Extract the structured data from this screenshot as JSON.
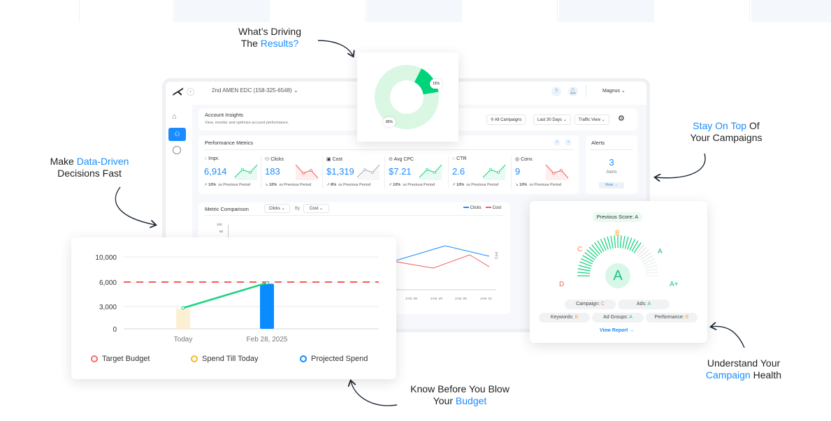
{
  "callouts": {
    "driving": {
      "line1": "What’s Driving",
      "line2_pre": "The ",
      "line2_hl": "Results?"
    },
    "data_driven": {
      "line1_pre": "Make ",
      "line1_hl": "Data-Driven",
      "line2": "Decisions Fast"
    },
    "stay_on_top": {
      "line1_hl": "Stay On Top",
      "line1_post": " Of",
      "line2": "Your Campaigns"
    },
    "health": {
      "line1": "Understand Your",
      "line2_hl": "Campaign",
      "line2_post": " Health"
    },
    "budget": {
      "line1": "Know Before You Blow",
      "line2_pre": "Your ",
      "line2_hl": "Budget"
    }
  },
  "colors": {
    "accent": "#1a8cff",
    "green": "#19d37f",
    "red": "#f25c5c",
    "orange": "#f5a623",
    "light_green": "#d9f7e8"
  },
  "header": {
    "account": "2nd AMEN EDC (158-325-6548)",
    "user": "Magnus"
  },
  "sidebar": {
    "items": [
      {
        "icon": "home-icon"
      },
      {
        "icon": "users-icon",
        "active": true
      },
      {
        "icon": "gauge-icon"
      }
    ]
  },
  "insights": {
    "title": "Account Insights",
    "subtitle": "View, monitor and optimize account performance.",
    "campaigns_filter": "All Campaigns",
    "date_filter": "Last 30 Days",
    "view_filter": "Traffic View"
  },
  "donut": {
    "segments": [
      {
        "label": "15%",
        "value": 15,
        "color": "#00d47a"
      },
      {
        "label": "85%",
        "value": 85,
        "color": "#d9f7e3"
      }
    ]
  },
  "performance": {
    "title": "Performance Metrics",
    "metrics": [
      {
        "label": "Impr.",
        "value": "6,914",
        "change": "10%",
        "compare": "vs Previous Period",
        "trend": "up",
        "color": "#19d37f"
      },
      {
        "label": "Clicks",
        "value": "183",
        "change": "10%",
        "compare": "vs Previous Period",
        "trend": "down",
        "color": "#f25c5c"
      },
      {
        "label": "Cost",
        "value": "$1,319",
        "change": "8%",
        "compare": "vs Previous Period",
        "trend": "up",
        "color": "#a9adb8"
      },
      {
        "label": "Avg CPC",
        "value": "$7.21",
        "change": "10%",
        "compare": "vs Previous Period",
        "trend": "up",
        "color": "#19d37f"
      },
      {
        "label": "CTR",
        "value": "2.6",
        "change": "10%",
        "compare": "vs Previous Period",
        "trend": "up",
        "color": "#19d37f"
      },
      {
        "label": "Conv.",
        "value": "9",
        "change": "10%",
        "compare": "vs Previous Period",
        "trend": "down",
        "color": "#f25c5c"
      }
    ]
  },
  "alerts": {
    "title": "Alerts",
    "count": "3",
    "label": "Alerts",
    "view": "View →"
  },
  "comparison": {
    "title": "Metric Comparison",
    "metric_a": "Clicks",
    "by": "By",
    "metric_b": "Cost",
    "legend": [
      "Clicks",
      "Cost"
    ],
    "y_ticks": [
      "100",
      "90"
    ],
    "right_axis_label": "Cost",
    "x_ticks": [
      "JAN 28",
      "JAN 29",
      "JAN 30",
      "JAN 31"
    ]
  },
  "chart_data": {
    "type": "bar",
    "categories": [
      "Today",
      "Feb 28, 2025"
    ],
    "y_ticks": [
      "0",
      "3,000",
      "6,000",
      "10,000"
    ],
    "y_tick_values": [
      0,
      3000,
      6000,
      10000
    ],
    "series": [
      {
        "name": "Spend Till Today",
        "values": [
          2700,
          null
        ],
        "color": "#fdf0d2"
      },
      {
        "name": "Projected Spend",
        "values": [
          null,
          5800
        ],
        "color": "#0a8cff"
      }
    ],
    "target": {
      "name": "Target Budget",
      "value": 6000,
      "color": "#f25c5c"
    },
    "trend_line": {
      "values": [
        2800,
        5900
      ],
      "color": "#19d37f"
    },
    "legend": [
      {
        "label": "Target Budget",
        "color": "#f56c6c"
      },
      {
        "label": "Spend Till Today",
        "color": "#f7b924"
      },
      {
        "label": "Projected Spend",
        "color": "#0a8cff"
      }
    ],
    "grid": true
  },
  "health": {
    "previous_score": "Previous Score: A",
    "score": "A",
    "scale": [
      {
        "label": "D",
        "color": "#f25c5c"
      },
      {
        "label": "C",
        "color": "#f5805c"
      },
      {
        "label": "B",
        "color": "#f5a623"
      },
      {
        "label": "A",
        "color": "#19c37f"
      },
      {
        "label": "A+",
        "color": "#19c37f"
      }
    ],
    "level": 0.72,
    "chips": [
      {
        "label": "Campaign: ",
        "grade": "C",
        "color": "#f5805c"
      },
      {
        "label": "Ads: ",
        "grade": "A",
        "color": "#19c37f"
      },
      {
        "label": "Keywords: ",
        "grade": "B",
        "color": "#f5a623"
      },
      {
        "label": "Ad Groups: ",
        "grade": "A",
        "color": "#19c37f"
      },
      {
        "label": "Performance: ",
        "grade": "B",
        "color": "#f5a623"
      }
    ],
    "view_report": "View Report →"
  }
}
